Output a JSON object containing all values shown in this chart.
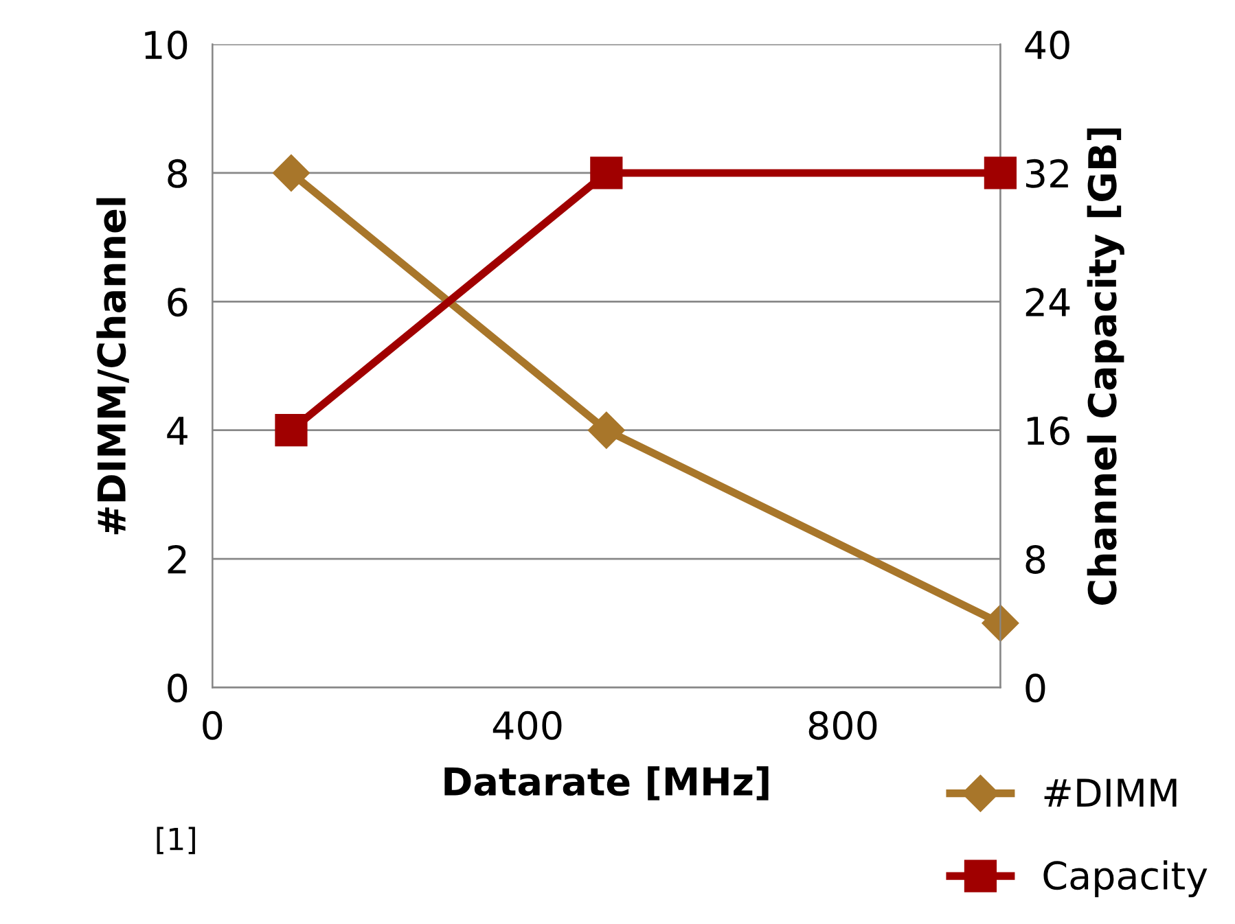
{
  "chart_data": {
    "type": "line",
    "xlabel": "Datarate [MHz]",
    "ylabel": "#DIMM/Channel",
    "y2label": "Channel Capacity [GB]",
    "x": [
      100,
      500,
      1000
    ],
    "xlim": [
      0,
      1000
    ],
    "xticks": [
      0,
      400,
      800
    ],
    "ylim": [
      0,
      10
    ],
    "yticks": [
      0,
      2,
      4,
      6,
      8,
      10
    ],
    "y2lim": [
      0,
      40
    ],
    "y2ticks": [
      0,
      8,
      16,
      24,
      32,
      40
    ],
    "series": [
      {
        "name": "#DIMM",
        "color": "#a8762a",
        "values": [
          8,
          4,
          1
        ],
        "marker": "diamond"
      },
      {
        "name": "Capacity",
        "color": "#a00000",
        "values": [
          16,
          32,
          32
        ],
        "marker": "square",
        "axis": "y2"
      }
    ],
    "grid": "y",
    "legend": "bottom right",
    "annotations": [
      "[1]"
    ]
  }
}
